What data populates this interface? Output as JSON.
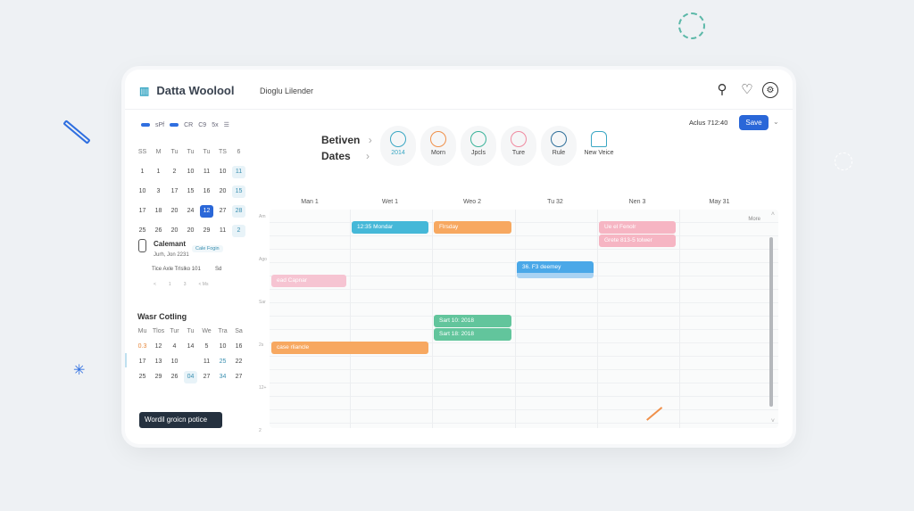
{
  "app": {
    "title": "Datta Woolool",
    "subtitle": "Dioglu Lilender"
  },
  "header_icons": [
    "search-icon",
    "heart-icon",
    "settings-icon"
  ],
  "sidebar": {
    "toolbar": [
      "sPf",
      "CR",
      "C9",
      "5x"
    ],
    "mini_calendar": {
      "weekdays": [
        "SS",
        "M",
        "Tu",
        "Tu",
        "Tu",
        "TS",
        "6"
      ],
      "rows": [
        [
          "1",
          "1",
          "2",
          "10",
          "11",
          "10",
          "11"
        ],
        [
          "10",
          "3",
          "17",
          "15",
          "16",
          "20",
          "15"
        ],
        [
          "17",
          "18",
          "20",
          "24",
          "12",
          "27",
          "28"
        ],
        [
          "25",
          "26",
          "20",
          "20",
          "29",
          "11",
          "2"
        ]
      ],
      "selected": "12"
    },
    "card": {
      "title": "Calemant",
      "tag": "Cale Fogin",
      "date": "Jurh, Jon 2231",
      "detail": "Tice Axle Trlslko 101",
      "detail_suffix": "Sd",
      "nav": [
        "<",
        "1",
        "3",
        "< Ms"
      ]
    },
    "section2": {
      "title": "Wasr Cotling",
      "weekdays": [
        "Mu",
        "Tlos",
        "Tur",
        "Tu",
        "We",
        "Tra",
        "Sa"
      ],
      "rows": [
        [
          "0.3",
          "12",
          "4",
          "14",
          "5",
          "10",
          "16"
        ],
        [
          "17",
          "13",
          "10",
          "",
          "11",
          "25",
          "22"
        ],
        [
          "25",
          "29",
          "26",
          "04",
          "27",
          "34",
          "27"
        ]
      ]
    },
    "button": "Wordil groicn potice"
  },
  "toolbar": {
    "heading_1": "Betiven",
    "heading_2": "Dates",
    "status": "Aclus 712:40",
    "save": "Save",
    "quick": [
      {
        "label": "2014",
        "color": "#3aa7c4"
      },
      {
        "label": "Morn",
        "color": "#f0904a"
      },
      {
        "label": "Jpcls",
        "color": "#3ab39a"
      },
      {
        "label": "Ture",
        "color": "#f08aa0"
      },
      {
        "label": "Rule",
        "color": "#2f6f9a"
      },
      {
        "label": "New Veice",
        "color": "#3aa7c4"
      }
    ]
  },
  "calendar": {
    "columns": [
      "Man 1",
      "Wet 1",
      "Weo 2",
      "Tu 32",
      "Nen 3",
      "May 31"
    ],
    "time_labels": [
      "Am",
      "Ago",
      "Sar",
      "2s",
      "12+",
      "2"
    ],
    "more": "More",
    "events": [
      {
        "label": "12:35 Mondar",
        "col": 1,
        "slot": 0,
        "span": 1,
        "color": "#45b8d8"
      },
      {
        "label": "Flrsday",
        "col": 2,
        "slot": 0,
        "span": 1,
        "color": "#f7a860"
      },
      {
        "label": "Ue el Fenolr",
        "col": 4,
        "slot": 0,
        "span": 1,
        "color": "#f6b5c3"
      },
      {
        "label": "Grete 813-5 tolwer",
        "col": 4,
        "slot": 1,
        "span": 1,
        "color": "#f6b5c3"
      },
      {
        "label": "36. F3 deemey",
        "col": 3,
        "slot": 3,
        "span": 1,
        "color": "#4aa8e8"
      },
      {
        "label": "ead Capnar",
        "col": 0,
        "slot": 4,
        "span": 1,
        "color": "#f6c4d2"
      },
      {
        "label": "Sart 10: 2018",
        "col": 2,
        "slot": 7,
        "span": 1,
        "color": "#62c59c"
      },
      {
        "label": "Sart 18: 2018",
        "col": 2,
        "slot": 8,
        "span": 1,
        "color": "#62c59c"
      },
      {
        "label": "case rliancle",
        "col": 0,
        "slot": 9,
        "span": 2,
        "color": "#f7a860"
      }
    ]
  }
}
